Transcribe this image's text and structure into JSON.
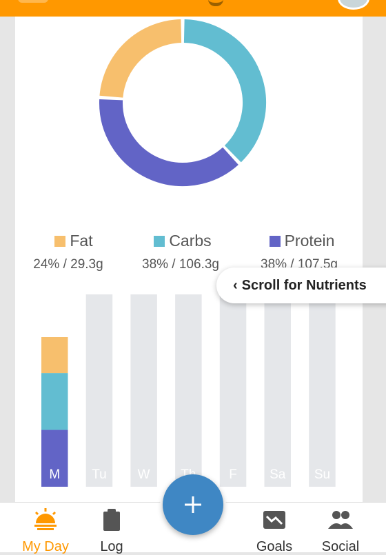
{
  "colors": {
    "fat": "#f7bf6d",
    "carbs": "#62bdd1",
    "protein": "#6264c6",
    "accent": "#ff9800",
    "empty_bar": "#e5e7ea"
  },
  "tooltip": {
    "chevron": "‹",
    "text": "Scroll for Nutrients"
  },
  "legend": [
    {
      "name": "Fat",
      "value": "24% / 29.3g"
    },
    {
      "name": "Carbs",
      "value": "38% / 106.3g"
    },
    {
      "name": "Protein",
      "value": "38% / 107.5g"
    }
  ],
  "chart_data": [
    {
      "type": "pie",
      "labels": [
        "Fat",
        "Carbs",
        "Protein"
      ],
      "values": [
        24,
        38,
        38
      ]
    },
    {
      "type": "bar",
      "stacked": true,
      "categories": [
        "M",
        "Tu",
        "W",
        "Th",
        "F",
        "Sa",
        "Su"
      ],
      "series": [
        {
          "name": "Protein",
          "values": [
            38,
            0,
            0,
            0,
            0,
            0,
            0
          ]
        },
        {
          "name": "Carbs",
          "values": [
            38,
            0,
            0,
            0,
            0,
            0,
            0
          ]
        },
        {
          "name": "Fat",
          "values": [
            24,
            0,
            0,
            0,
            0,
            0,
            0
          ]
        }
      ]
    }
  ],
  "nav": {
    "items": [
      {
        "label": "My Day",
        "icon": "sunrise-icon"
      },
      {
        "label": "Log",
        "icon": "clipboard-icon"
      },
      {
        "label": "Goals",
        "icon": "trend-down-icon"
      },
      {
        "label": "Social",
        "icon": "people-icon"
      }
    ],
    "fab_icon": "plus-icon"
  }
}
